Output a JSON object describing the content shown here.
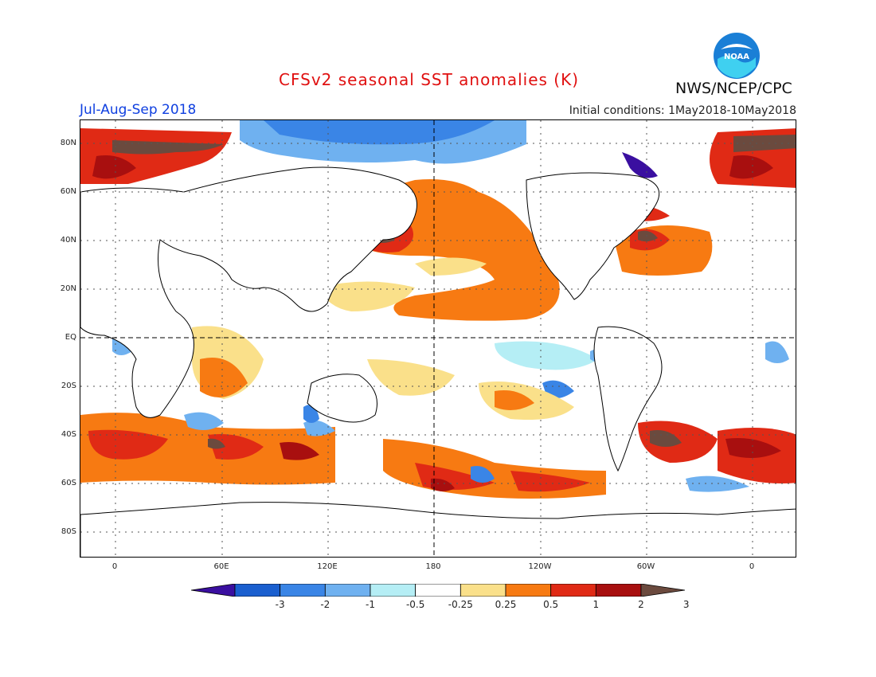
{
  "title": "CFSv2 seasonal SST anomalies (K)",
  "period": "Jul-Aug-Sep 2018",
  "initial_conditions": "Initial conditions: 1May2018-10May2018",
  "organization": "NWS/NCEP/CPC",
  "logo_text": "NOAA",
  "lat_labels": [
    "80N",
    "60N",
    "40N",
    "20N",
    "EQ",
    "20S",
    "40S",
    "60S",
    "80S"
  ],
  "lon_labels": [
    "0",
    "60E",
    "120E",
    "180",
    "120W",
    "60W",
    "0"
  ],
  "colorbar": {
    "labels": [
      "-3",
      "-2",
      "-1",
      "-0.5",
      "-0.25",
      "0.25",
      "0.5",
      "1",
      "2",
      "3"
    ],
    "colors": [
      "#3a0fa0",
      "#1a5fcf",
      "#3a85e6",
      "#6fb1f0",
      "#b5eef5",
      "#ffffff",
      "#fae08a",
      "#f77a12",
      "#e02a15",
      "#a80f0f",
      "#6b4a3e"
    ]
  },
  "colors": {
    "title": "#e01010",
    "period": "#1040e0",
    "land": "#ffffff",
    "coast": "#000000"
  }
}
